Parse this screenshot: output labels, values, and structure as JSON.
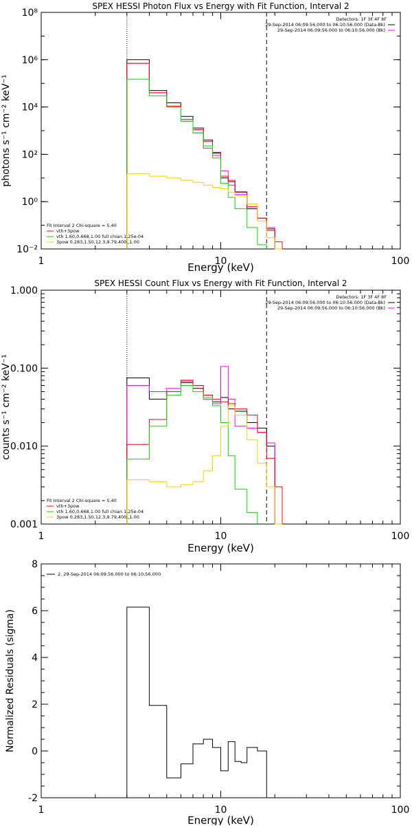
{
  "chart_data": [
    {
      "type": "line",
      "title": "SPEX HESSI Photon Flux vs Energy with Fit Function, Interval 2",
      "xlabel": "Energy (keV)",
      "ylabel": "photons s⁻¹ cm⁻² keV⁻¹",
      "xscale": "log",
      "yscale": "log",
      "xlim": [
        1,
        100
      ],
      "ylim": [
        0.01,
        100000000
      ],
      "xticks": [
        1,
        10,
        100
      ],
      "xtick_labels": [
        "1",
        "10",
        "100"
      ],
      "yticks": [
        0.01,
        1,
        100,
        10000,
        1000000,
        100000000
      ],
      "ytick_labels": [
        "10⁻²",
        "10⁰",
        "10²",
        "10⁴",
        "10⁶",
        "10⁸"
      ],
      "xmarks": [
        {
          "x": 3.0,
          "style": "dotted"
        },
        {
          "x": 18.0,
          "style": "dashed"
        }
      ],
      "header_text": [
        "Detectors: 1F 3F 4F 8F",
        "29-Sep-2014 06:09:56.000 to 06:10:56.000 (Data-Bk)",
        "29-Sep-2014 06:09:56.000 to 06:10:56.000 (Bk)"
      ],
      "header_legend": [
        {
          "text": "29-Sep-2014 06:09:56.000 to 06:10:56.000 (Data-Bk)",
          "color": "#000000"
        },
        {
          "text": "29-Sep-2014 06:09:56.000 to 06:10:56.000 (Bk)",
          "color": "#ff00ff"
        }
      ],
      "fit_title": "Fit Interval  2   Chi-square = 5.40",
      "legend": [
        {
          "text": "vth+3pow",
          "color": "#ff0000"
        },
        {
          "text": "vth 1.60,0.668,1.00  full chian 1.25e-04",
          "color": "#00dd00"
        },
        {
          "text": "3pow 0.283,1.50,12.3,9.79,400.,1.00",
          "color": "#ffcc00"
        }
      ],
      "bin_edges": [
        3.0,
        3.5,
        4.0,
        4.5,
        5.0,
        5.5,
        6.0,
        6.5,
        7.0,
        7.5,
        8.0,
        8.5,
        9.0,
        9.5,
        10.0,
        11.0,
        12.0,
        13.0,
        14.0,
        15.0,
        16.0,
        17.0,
        18.0,
        20.0,
        22.0
      ],
      "series": [
        {
          "color": "#000000",
          "values": [
            1000000,
            1000000,
            50000,
            50000,
            15000,
            15000,
            4000,
            4000,
            1300,
            1300,
            400,
            400,
            120,
            120,
            10,
            7,
            2.5,
            2.5,
            0.5,
            0.5,
            0.2,
            0.2,
            0.07,
            null
          ]
        },
        {
          "color": "#ff00ff",
          "values": [
            700000,
            700000,
            40000,
            40000,
            10000,
            10000,
            2500,
            2500,
            800,
            800,
            180,
            180,
            90,
            90,
            20,
            5,
            2,
            2,
            0.6,
            0.6,
            0.15,
            0.15,
            0.08,
            null
          ]
        },
        {
          "color": "#ff0000",
          "values": [
            700000,
            700000,
            40000,
            40000,
            11000,
            11000,
            3000,
            3000,
            1100,
            1100,
            350,
            350,
            110,
            110,
            12,
            8,
            2.6,
            2.6,
            0.6,
            0.6,
            0.2,
            0.2,
            0.06,
            0.02
          ]
        },
        {
          "color": "#00dd00",
          "values": [
            150000,
            150000,
            30000,
            30000,
            10000,
            10000,
            2500,
            2500,
            800,
            800,
            230,
            230,
            70,
            70,
            6,
            1.5,
            0.5,
            0.5,
            0.08,
            0.08,
            0.015,
            0.015,
            null,
            null
          ]
        },
        {
          "color": "#ffcc00",
          "values": [
            15,
            15,
            12,
            12,
            10,
            10,
            8,
            8,
            6.5,
            6.5,
            5,
            5,
            4,
            4,
            3.5,
            2.5,
            1.8,
            1.8,
            0.8,
            0.8,
            0.15,
            0.15,
            0.03,
            0.01
          ]
        }
      ]
    },
    {
      "type": "line",
      "title": "SPEX HESSI Count Flux vs Energy with Fit Function, Interval 2",
      "xlabel": "Energy (keV)",
      "ylabel": "counts s⁻¹ cm⁻² keV⁻¹",
      "xscale": "log",
      "yscale": "log",
      "xlim": [
        1,
        100
      ],
      "ylim": [
        0.001,
        1
      ],
      "xticks": [
        1,
        10,
        100
      ],
      "xtick_labels": [
        "1",
        "10",
        "100"
      ],
      "yticks": [
        0.001,
        0.01,
        0.1,
        1
      ],
      "ytick_labels": [
        "0.001",
        "0.010",
        "0.100",
        "1.000"
      ],
      "xmarks": [
        {
          "x": 3.0,
          "style": "dotted"
        },
        {
          "x": 18.0,
          "style": "dashed"
        }
      ],
      "header_text": [
        "Detectors: 1F 3F 4F 8F",
        "29-Sep-2014 06:09:56.000 to 06:10:56.000 (Data-Bk)",
        "29-Sep-2014 06:09:56.000 to 06:10:56.000 (Bk)"
      ],
      "header_legend": [
        {
          "text": "29-Sep-2014 06:09:56.000 to 06:10:56.000 (Data-Bk)",
          "color": "#000000"
        },
        {
          "text": "29-Sep-2014 06:09:56.000 to 06:10:56.000 (Bk)",
          "color": "#ff00ff"
        }
      ],
      "fit_title": "Fit Interval  2   Chi-square = 5.40",
      "legend": [
        {
          "text": "vth+3pow",
          "color": "#ff0000"
        },
        {
          "text": "vth 1.60,0.668,1.00  full chian 1.25e-04",
          "color": "#00dd00"
        },
        {
          "text": "3pow 0.283,1.50,12.3,9.79,400.,1.00",
          "color": "#ffcc00"
        }
      ],
      "bin_edges": [
        3.0,
        3.5,
        4.0,
        4.5,
        5.0,
        5.5,
        6.0,
        6.5,
        7.0,
        7.5,
        8.0,
        8.5,
        9.0,
        9.5,
        10.0,
        11.0,
        12.0,
        13.0,
        14.0,
        15.0,
        16.0,
        17.0,
        18.0,
        20.0,
        22.0
      ],
      "series": [
        {
          "color": "#000000",
          "values": [
            0.075,
            0.075,
            0.04,
            0.04,
            0.05,
            0.05,
            0.065,
            0.065,
            0.055,
            0.055,
            0.045,
            0.045,
            0.037,
            0.037,
            0.042,
            0.03,
            0.028,
            0.028,
            0.02,
            0.02,
            0.017,
            0.017,
            0.01,
            null
          ]
        },
        {
          "color": "#ff00ff",
          "values": [
            0.06,
            0.06,
            0.05,
            0.05,
            0.055,
            0.055,
            0.068,
            0.068,
            0.05,
            0.05,
            0.04,
            0.04,
            0.035,
            0.035,
            0.105,
            0.04,
            0.018,
            0.018,
            0.017,
            0.017,
            0.015,
            0.015,
            0.011,
            null
          ]
        },
        {
          "color": "#ff0000",
          "values": [
            0.0105,
            0.0105,
            0.022,
            0.022,
            0.05,
            0.05,
            0.07,
            0.07,
            0.06,
            0.06,
            0.045,
            0.045,
            0.04,
            0.04,
            0.037,
            0.035,
            0.03,
            0.03,
            0.025,
            0.025,
            0.015,
            0.015,
            0.007,
            0.003
          ]
        },
        {
          "color": "#00dd00",
          "values": [
            0.0068,
            0.0068,
            0.018,
            0.018,
            0.045,
            0.045,
            0.06,
            0.06,
            0.05,
            0.05,
            0.042,
            0.042,
            0.033,
            0.033,
            0.02,
            0.0075,
            0.0028,
            0.0028,
            0.0014,
            0.0014,
            null,
            null,
            null,
            null
          ]
        },
        {
          "color": "#ffcc00",
          "values": [
            0.0037,
            0.0037,
            0.0035,
            0.0035,
            0.003,
            0.003,
            0.0032,
            0.0032,
            0.0035,
            0.0035,
            0.0048,
            0.0048,
            0.0075,
            0.0075,
            0.018,
            0.033,
            0.025,
            0.025,
            0.012,
            0.012,
            0.006,
            0.006,
            0.003,
            0.001
          ]
        }
      ]
    },
    {
      "type": "line",
      "title": "",
      "xlabel": "Energy (keV)",
      "ylabel": "Normalized Residuals (sigma)",
      "xscale": "log",
      "yscale": "linear",
      "xlim": [
        1,
        100
      ],
      "ylim": [
        -2,
        8
      ],
      "xticks": [
        1,
        10,
        100
      ],
      "xtick_labels": [
        "1",
        "10",
        "100"
      ],
      "yticks": [
        -2,
        0,
        2,
        4,
        6,
        8
      ],
      "ytick_labels": [
        "-2",
        "0",
        "2",
        "4",
        "6",
        "8"
      ],
      "legend": [
        {
          "text": "2. 29-Sep-2014 06:09:56.000 to 06:10:56.000",
          "color": "#000000"
        }
      ],
      "bin_edges": [
        3.0,
        4.0,
        5.0,
        6.0,
        7.0,
        8.0,
        9.0,
        10.0,
        11.0,
        12.0,
        13.0,
        14.0,
        16.0,
        17.0,
        18.0
      ],
      "series": [
        {
          "color": "#000000",
          "values": [
            6.15,
            1.95,
            -1.15,
            -0.55,
            0.3,
            0.5,
            0.15,
            -0.85,
            0.4,
            -0.45,
            -0.5,
            0.15,
            0.0,
            0.0
          ]
        }
      ]
    }
  ]
}
